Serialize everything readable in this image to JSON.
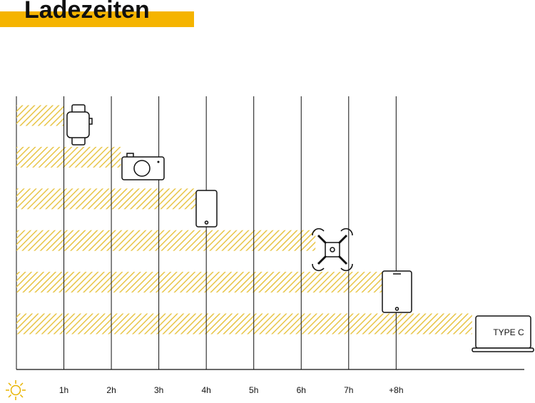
{
  "chart_data": {
    "type": "bar",
    "orientation": "horizontal",
    "title": "Ladezeiten",
    "categories": [
      null,
      null,
      null,
      null,
      null,
      null
    ],
    "values": [
      1,
      2.2,
      3.8,
      6.3,
      7.7,
      9.6
    ],
    "color": "#e8c547",
    "annotation": "TYPE C",
    "xlim": [
      0,
      10.7
    ],
    "xticks": [
      {
        "value": 1,
        "label": "1h"
      },
      {
        "value": 2,
        "label": "2h"
      },
      {
        "value": 3,
        "label": "3h"
      },
      {
        "value": 4,
        "label": "4h"
      },
      {
        "value": 5,
        "label": "5h"
      },
      {
        "value": 6,
        "label": "6h"
      },
      {
        "value": 7,
        "label": "7h"
      },
      {
        "value": 8,
        "label": "+8h"
      }
    ],
    "grid": true
  }
}
